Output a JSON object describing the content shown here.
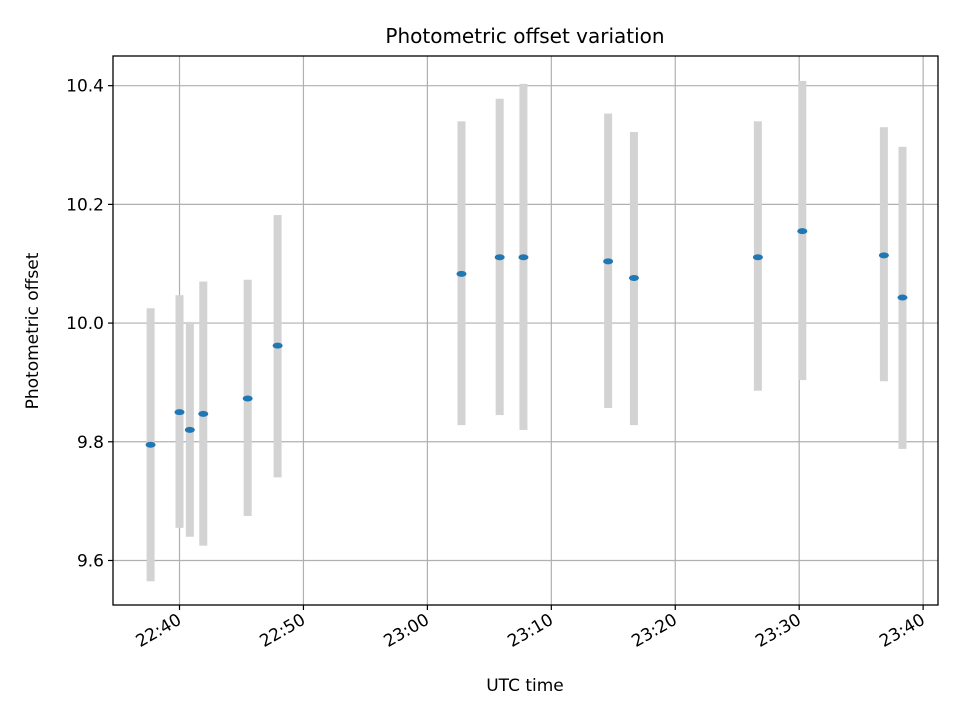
{
  "chart_data": {
    "type": "scatter",
    "title": "Photometric offset variation",
    "xlabel": "UTC time",
    "ylabel": "Photometric offset",
    "x_unit": "UTC time (HH:MM)",
    "xlim": [
      "22:34:38",
      "23:41:12"
    ],
    "ylim": [
      9.525,
      10.45
    ],
    "xticks": [
      "22:40",
      "22:50",
      "23:00",
      "23:10",
      "23:20",
      "23:30",
      "23:40"
    ],
    "yticks": [
      9.6,
      9.8,
      10.0,
      10.2,
      10.4
    ],
    "grid": true,
    "colors": {
      "points": "#1f77b4",
      "error_bars": "#d3d3d3"
    },
    "series": [
      {
        "x": [
          "22:37:40",
          "22:40:00",
          "22:40:50",
          "22:41:55",
          "22:45:30",
          "22:47:55",
          "23:02:45",
          "23:05:50",
          "23:07:45",
          "23:14:35",
          "23:16:40",
          "23:26:40",
          "23:30:15",
          "23:36:50",
          "23:38:20"
        ],
        "y": [
          9.795,
          9.85,
          9.82,
          9.847,
          9.873,
          9.962,
          10.083,
          10.111,
          10.111,
          10.104,
          10.076,
          10.111,
          10.155,
          10.114,
          10.043
        ],
        "err_low": [
          9.565,
          9.655,
          9.64,
          9.625,
          9.675,
          9.74,
          9.828,
          9.845,
          9.82,
          9.857,
          9.828,
          9.886,
          9.904,
          9.902,
          9.788
        ],
        "err_high": [
          10.025,
          10.047,
          10.002,
          10.07,
          10.073,
          10.182,
          10.34,
          10.378,
          10.403,
          10.353,
          10.322,
          10.34,
          10.408,
          10.33,
          10.297
        ]
      }
    ]
  }
}
